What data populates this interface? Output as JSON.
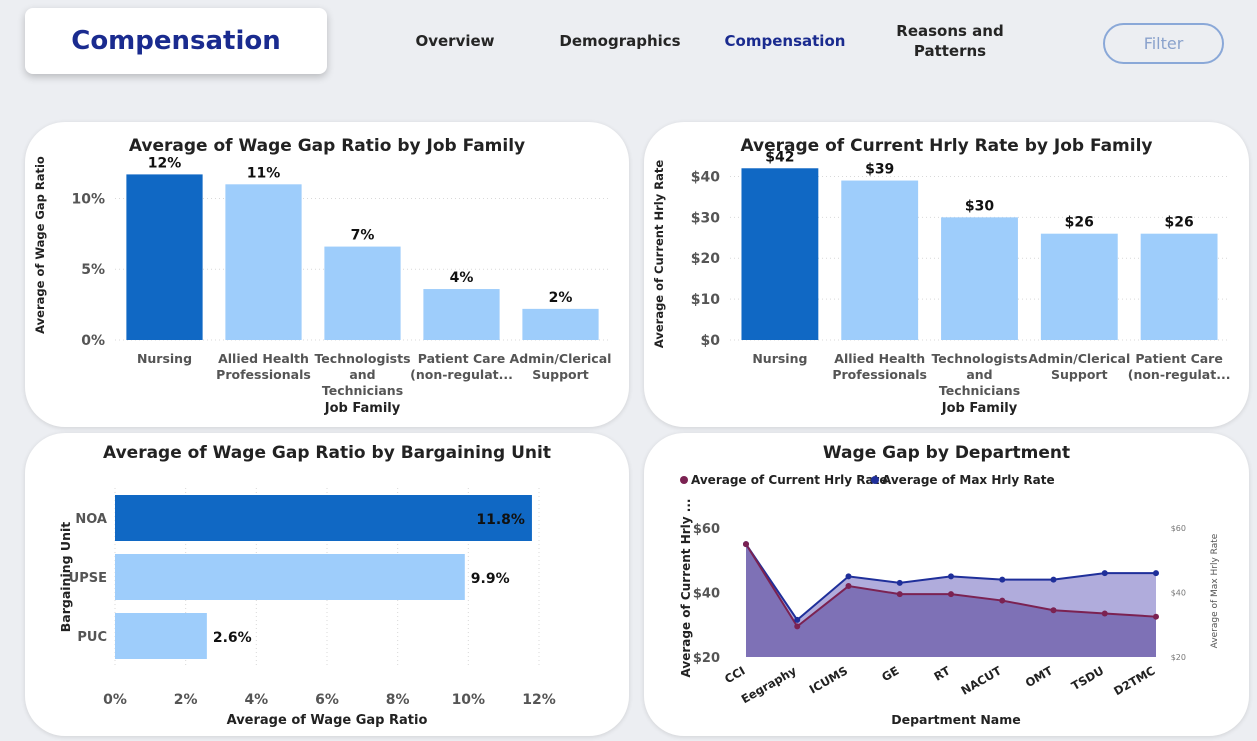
{
  "header": {
    "page_title": "Compensation",
    "nav": [
      {
        "label": "Overview"
      },
      {
        "label": "Demographics"
      },
      {
        "label": "Compensation"
      },
      {
        "label": "Reasons and Patterns"
      }
    ],
    "filter_label": "Filter"
  },
  "colors": {
    "highlight_bar": "#1068c4",
    "normal_bar": "#9ecdfb",
    "current_rate": "#7b2252",
    "max_rate": "#1f2f9a",
    "area_fill": "#7e71b6"
  },
  "chart_data": [
    {
      "type": "bar",
      "title": "Average of Wage Gap Ratio by Job Family",
      "xlabel": "Job Family",
      "ylabel": "Average of Wage Gap Ratio",
      "categories": [
        "Nursing",
        "Allied Health Professionals",
        "Technologists and Technicians",
        "Patient Care (non-regulat...",
        "Admin/Clerical Support"
      ],
      "values": [
        11.7,
        11.0,
        6.6,
        3.6,
        2.2
      ],
      "data_labels": [
        "12%",
        "11%",
        "7%",
        "4%",
        "2%"
      ],
      "yticks": [
        "0%",
        "5%",
        "10%"
      ],
      "ylim": [
        0,
        13
      ],
      "grid": true
    },
    {
      "type": "bar",
      "title": "Average of Current Hrly Rate by Job Family",
      "xlabel": "Job Family",
      "ylabel": "Average of Current Hrly Rate",
      "categories": [
        "Nursing",
        "Allied Health Professionals",
        "Technologists and Technicians",
        "Admin/Clerical Support",
        "Patient Care (non-regulat..."
      ],
      "values": [
        42,
        39,
        30,
        26,
        26
      ],
      "data_labels": [
        "$42",
        "$39",
        "$30",
        "$26",
        "$26"
      ],
      "yticks": [
        "$0",
        "$10",
        "$20",
        "$30",
        "$40"
      ],
      "ylim": [
        0,
        45
      ],
      "grid": true
    },
    {
      "type": "bar",
      "orientation": "horizontal",
      "title": "Average of Wage Gap Ratio by Bargaining Unit",
      "xlabel": "Average of Wage Gap Ratio",
      "ylabel": "Bargaining Unit",
      "categories": [
        "NOA",
        "UPSE",
        "PUC"
      ],
      "values": [
        11.8,
        9.9,
        2.6
      ],
      "data_labels": [
        "11.8%",
        "9.9%",
        "2.6%"
      ],
      "xticks": [
        "0%",
        "2%",
        "4%",
        "6%",
        "8%",
        "10%",
        "12%"
      ],
      "xlim": [
        0,
        12
      ],
      "grid": true
    },
    {
      "type": "area",
      "title": "Wage Gap by Department",
      "xlabel": "Department Name",
      "ylabel": "Average of Current Hrly ...",
      "ylabel_right": "Average of Max Hrly Rate",
      "categories": [
        "CCI",
        "Eegraphy",
        "ICUMS",
        "GE",
        "RT",
        "NACUT",
        "OMT",
        "TSDU",
        "D2TMC"
      ],
      "series": [
        {
          "name": "Average of Current Hrly Rate",
          "values": [
            55,
            29.5,
            42,
            39.5,
            39.5,
            37.5,
            34.5,
            33.5,
            32.5
          ]
        },
        {
          "name": "Average of Max Hrly Rate",
          "values": [
            55,
            31.5,
            45,
            43,
            45,
            44,
            44,
            46,
            46
          ]
        }
      ],
      "yticks": [
        "$20",
        "$40",
        "$60"
      ],
      "yticks_right": [
        "$20",
        "$40",
        "$60"
      ],
      "ylim": [
        20,
        60
      ],
      "legend": "top-left"
    }
  ]
}
